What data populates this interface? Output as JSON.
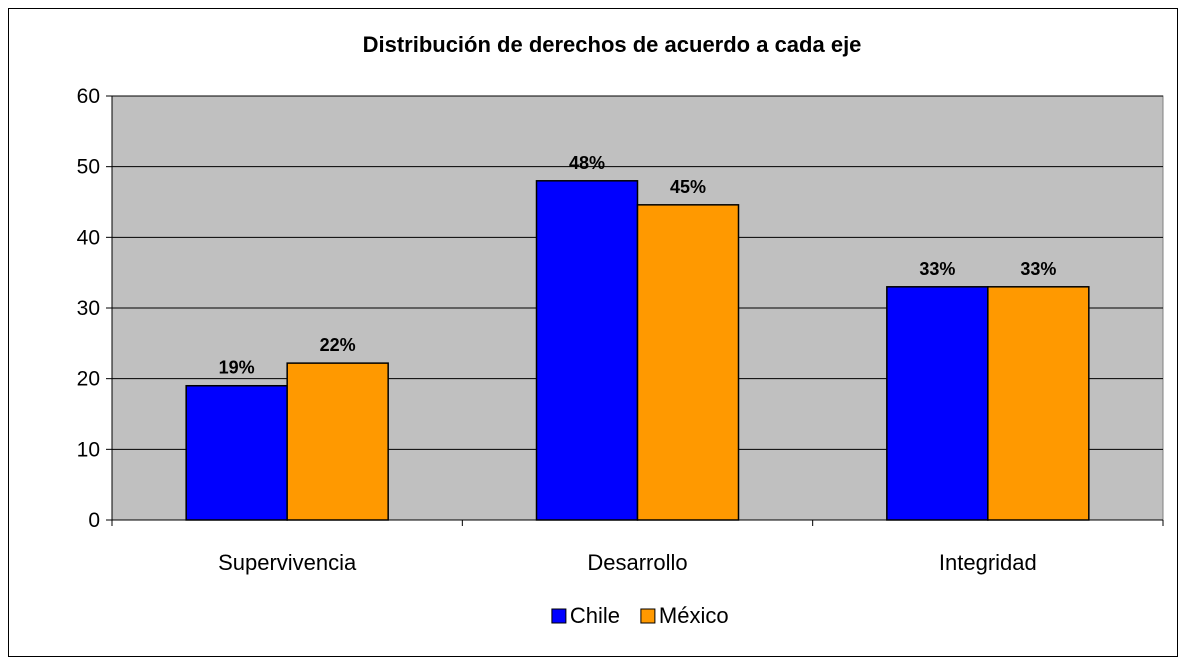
{
  "chart_data": {
    "type": "bar",
    "title": "Distribución de derechos de acuerdo a cada eje",
    "categories": [
      "Supervivencia",
      "Desarrollo",
      "Integridad"
    ],
    "series": [
      {
        "name": "Chile",
        "values": [
          19,
          48,
          33
        ],
        "labels": [
          "19%",
          "48%",
          "33%"
        ],
        "color": "#0000FF"
      },
      {
        "name": "México",
        "values": [
          22.2,
          44.6,
          33
        ],
        "labels": [
          "22%",
          "45%",
          "33%"
        ],
        "color": "#FF9900"
      }
    ],
    "ylim": [
      0,
      60
    ],
    "yticks": [
      0,
      10,
      20,
      30,
      40,
      50,
      60
    ],
    "grid": true,
    "plot_background": "#C0C0C0",
    "legend": "bottom"
  }
}
